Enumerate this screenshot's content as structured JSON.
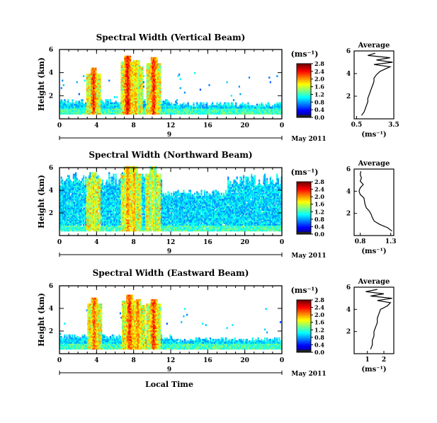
{
  "chart_data": [
    {
      "type": "heatmap",
      "title": "Spectral Width (Vertical Beam)",
      "ylabel": "Height (km)",
      "xlabel": "",
      "xticks": [
        "0",
        "4",
        "8",
        "12",
        "16",
        "20",
        "0"
      ],
      "x_range": [
        0,
        24
      ],
      "yticks": [
        "2",
        "4",
        "6"
      ],
      "y_range": [
        0,
        6
      ],
      "date_label": "9",
      "month_label": "May 2011",
      "colorbar_unit": "(ms⁻¹)",
      "colorbar_ticks": [
        "0.0",
        "0.4",
        "0.8",
        "1.2",
        "1.6",
        "2.0",
        "2.4",
        "2.8"
      ],
      "colorbar_range": [
        0.0,
        2.8
      ],
      "average_profile": {
        "title": "Average",
        "xlabel": "(ms⁻¹)",
        "xticks": [
          "0.5",
          "3.5"
        ],
        "x_range": [
          0.3,
          3.5
        ],
        "yticks": [
          "2",
          "4",
          "6"
        ],
        "y_range": [
          0,
          6
        ],
        "heights": [
          0.3,
          0.6,
          0.9,
          1.2,
          1.5,
          1.8,
          2.1,
          2.4,
          2.7,
          3.0,
          3.3,
          3.6,
          3.9,
          4.2,
          4.4,
          4.6,
          4.8,
          5.0,
          5.2,
          5.4,
          5.6,
          5.8
        ],
        "values": [
          0.9,
          1.1,
          1.2,
          1.3,
          1.4,
          1.4,
          1.5,
          1.6,
          1.7,
          1.8,
          1.9,
          1.9,
          2.1,
          2.4,
          2.8,
          3.2,
          1.9,
          3.4,
          2.1,
          3.2,
          1.4,
          2.0
        ]
      }
    },
    {
      "type": "heatmap",
      "title": "Spectral Width (Northward Beam)",
      "ylabel": "Height (km)",
      "xlabel": "",
      "xticks": [
        "0",
        "4",
        "8",
        "12",
        "16",
        "20",
        "0"
      ],
      "x_range": [
        0,
        24
      ],
      "yticks": [
        "2",
        "4",
        "6"
      ],
      "y_range": [
        0,
        6
      ],
      "date_label": "9",
      "month_label": "May 2011",
      "colorbar_unit": "(ms⁻¹)",
      "colorbar_ticks": [
        "0.0",
        "0.4",
        "0.8",
        "1.2",
        "1.6",
        "2.0",
        "2.4",
        "2.8"
      ],
      "colorbar_range": [
        0.0,
        2.8
      ],
      "average_profile": {
        "title": "Average",
        "xlabel": "(ms⁻¹)",
        "xticks": [
          "0.8",
          "1.3"
        ],
        "x_range": [
          0.7,
          1.35
        ],
        "yticks": [
          "2",
          "4",
          "6"
        ],
        "y_range": [
          0,
          6
        ],
        "heights": [
          0.4,
          0.7,
          1.0,
          1.3,
          1.6,
          1.9,
          2.2,
          2.5,
          2.8,
          3.1,
          3.4,
          3.7,
          4.0,
          4.3,
          4.6,
          4.9,
          5.2,
          5.5,
          5.8
        ],
        "values": [
          1.32,
          1.25,
          1.12,
          1.03,
          1.0,
          0.98,
          0.95,
          0.9,
          0.88,
          0.87,
          0.86,
          0.8,
          0.78,
          0.8,
          0.85,
          0.8,
          0.82,
          0.8,
          0.81
        ]
      }
    },
    {
      "type": "heatmap",
      "title": "Spectral Width (Eastward Beam)",
      "ylabel": "Height (km)",
      "xlabel": "Local Time",
      "xticks": [
        "0",
        "4",
        "8",
        "12",
        "16",
        "20",
        "0"
      ],
      "x_range": [
        0,
        24
      ],
      "yticks": [
        "2",
        "4",
        "6"
      ],
      "y_range": [
        0,
        6
      ],
      "date_label": "9",
      "month_label": "May 2011",
      "colorbar_unit": "(ms⁻¹)",
      "colorbar_ticks": [
        "0.0",
        "0.4",
        "0.8",
        "1.2",
        "1.6",
        "2.0",
        "2.4",
        "2.8"
      ],
      "colorbar_range": [
        0.0,
        2.8
      ],
      "average_profile": {
        "title": "Average",
        "xlabel": "(ms⁻¹)",
        "xticks": [
          "1",
          "2"
        ],
        "x_range": [
          0.2,
          2.6
        ],
        "yticks": [
          "2",
          "4",
          "6"
        ],
        "y_range": [
          0,
          6
        ],
        "heights": [
          0.4,
          0.8,
          1.2,
          1.6,
          2.0,
          2.4,
          2.8,
          3.2,
          3.6,
          4.0,
          4.3,
          4.6,
          4.8,
          5.0,
          5.2,
          5.4,
          5.6,
          5.8
        ],
        "values": [
          1.2,
          1.3,
          1.3,
          1.4,
          1.4,
          1.5,
          1.6,
          1.6,
          1.7,
          1.8,
          2.2,
          2.4,
          1.6,
          2.5,
          1.2,
          2.0,
          0.9,
          1.6
        ]
      }
    }
  ]
}
